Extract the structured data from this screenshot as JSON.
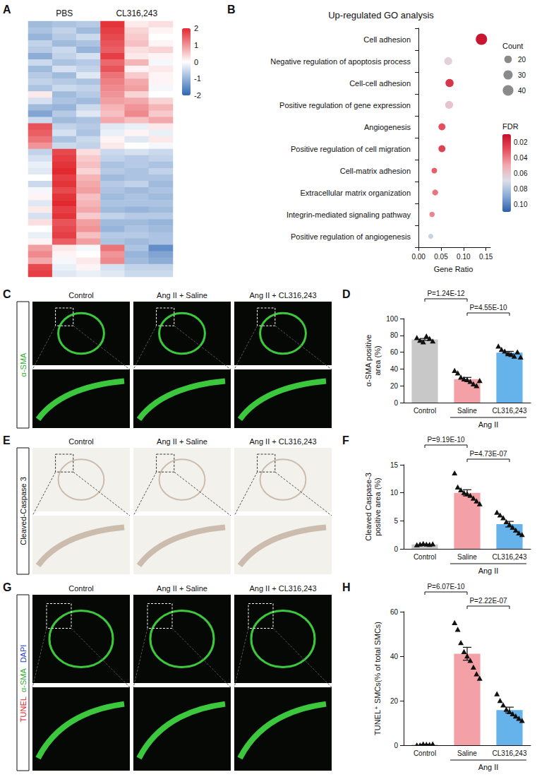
{
  "chart_data": [
    {
      "panel": "A",
      "type": "heatmap",
      "categories": [
        null,
        "PBS",
        null,
        null,
        "CL316,243",
        null
      ],
      "values": [
        [
          -0.9,
          -0.8,
          -0.7,
          1.9,
          0.2,
          0.3
        ],
        [
          -0.8,
          -0.6,
          -0.9,
          1.8,
          0.4,
          0.1
        ],
        [
          -1.0,
          -0.7,
          -0.5,
          1.7,
          0.5,
          0.0
        ],
        [
          -0.6,
          -0.9,
          -0.8,
          1.6,
          0.6,
          0.1
        ],
        [
          -0.7,
          -0.5,
          -1.0,
          1.5,
          0.3,
          0.4
        ],
        [
          -1.1,
          -0.6,
          -0.4,
          1.8,
          0.2,
          0.1
        ],
        [
          -0.5,
          -0.8,
          -0.7,
          1.4,
          0.7,
          -0.1
        ],
        [
          -0.9,
          -0.4,
          -0.6,
          1.6,
          0.1,
          0.2
        ],
        [
          -0.7,
          -0.9,
          -0.3,
          1.3,
          0.5,
          0.1
        ],
        [
          -0.6,
          -0.7,
          -0.8,
          1.2,
          0.8,
          0.1
        ],
        [
          -0.8,
          -0.5,
          -0.6,
          1.1,
          0.9,
          -0.1
        ],
        [
          0.2,
          -0.9,
          -0.7,
          1.0,
          0.4,
          0.0
        ],
        [
          -0.4,
          -0.8,
          -0.9,
          0.9,
          0.8,
          0.4
        ],
        [
          -0.9,
          -1.0,
          -0.5,
          0.7,
          1.0,
          0.7
        ],
        [
          -1.2,
          -0.7,
          -0.3,
          0.6,
          1.1,
          0.5
        ],
        [
          -0.5,
          -0.9,
          -0.8,
          0.8,
          0.6,
          0.8
        ],
        [
          1.6,
          -0.6,
          -0.7,
          -0.3,
          -0.2,
          0.2
        ],
        [
          1.5,
          -0.4,
          -0.8,
          -0.2,
          0.1,
          -0.2
        ],
        [
          1.3,
          -0.8,
          -0.5,
          0.1,
          -0.3,
          0.2
        ],
        [
          1.0,
          -0.5,
          -0.6,
          0.2,
          0.0,
          -0.1
        ],
        [
          -0.6,
          1.7,
          0.3,
          -0.5,
          -0.4,
          -0.5
        ],
        [
          -0.4,
          1.8,
          0.5,
          -0.6,
          -0.7,
          -0.6
        ],
        [
          -0.2,
          1.9,
          0.6,
          -0.8,
          -0.7,
          -0.8
        ],
        [
          -0.3,
          2.0,
          0.4,
          -0.7,
          -0.8,
          -0.6
        ],
        [
          0.0,
          1.8,
          0.7,
          -0.9,
          -0.8,
          -0.8
        ],
        [
          -0.5,
          1.9,
          0.8,
          -0.7,
          -0.6,
          -0.9
        ],
        [
          -0.1,
          1.7,
          0.9,
          -0.8,
          -0.9,
          -0.8
        ],
        [
          0.1,
          1.9,
          0.6,
          -0.9,
          -0.8,
          -0.9
        ],
        [
          -0.3,
          2.0,
          0.7,
          -0.8,
          -0.8,
          -0.8
        ],
        [
          0.2,
          1.8,
          0.8,
          -0.9,
          -1.0,
          -0.9
        ],
        [
          -0.4,
          1.9,
          0.5,
          -0.6,
          -0.7,
          -0.7
        ],
        [
          0.3,
          1.6,
          0.9,
          -0.9,
          -0.9,
          -1.0
        ],
        [
          0.0,
          1.7,
          1.0,
          -1.0,
          -0.8,
          -0.9
        ],
        [
          -0.2,
          1.8,
          0.6,
          -0.7,
          -0.7,
          -0.8
        ],
        [
          0.1,
          1.5,
          0.9,
          -0.8,
          -0.9,
          -0.8
        ],
        [
          0.9,
          0.2,
          -0.1,
          1.3,
          -0.8,
          -1.5
        ],
        [
          1.1,
          0.1,
          0.0,
          1.0,
          -1.0,
          -1.2
        ],
        [
          0.8,
          -0.1,
          0.2,
          1.1,
          -0.9,
          -1.1
        ],
        [
          1.7,
          -0.2,
          0.1,
          -0.4,
          -0.6,
          -0.6
        ],
        [
          1.8,
          -0.3,
          -0.2,
          -0.3,
          -0.5,
          -0.5
        ]
      ],
      "colorbar": {
        "range": [
          -2,
          2
        ],
        "ticks": [
          -2,
          -1,
          0,
          1,
          2
        ]
      },
      "tick_labels": "x"
    },
    {
      "panel": "B",
      "type": "scatter",
      "title": "Up-regulated GO analysis",
      "x_label": "Gene Ratio",
      "categories": [
        "Cell adhesion",
        "Negative regulation of apoptosis process",
        "Cell-cell adhesion",
        "Positive regulation of gene expression",
        "Angiogenesis",
        "Positive regulation of cell migration",
        "Cell-matrix adhesion",
        "Extracellular matrix organization",
        "Integrin-mediated signaling pathway",
        "Positive regulation of angiogenesis"
      ],
      "values": [
        0.14,
        0.066,
        0.069,
        0.068,
        0.052,
        0.052,
        0.035,
        0.037,
        0.03,
        0.027
      ],
      "counts": [
        45,
        22,
        23,
        22,
        17,
        17,
        11,
        12,
        10,
        9
      ],
      "fdr": [
        0.012,
        0.065,
        0.022,
        0.06,
        0.03,
        0.026,
        0.033,
        0.038,
        0.042,
        0.075
      ],
      "xlim": [
        -0.005,
        0.16
      ],
      "xticks": [
        {
          "value": 0,
          "label": "0.00"
        },
        {
          "value": 0.05,
          "label": "0.05"
        },
        {
          "value": 0.1,
          "label": "0.10"
        },
        {
          "value": 0.15,
          "label": "0.15"
        }
      ],
      "count_legend": {
        "title": "Count",
        "values": [
          20,
          30,
          40
        ]
      },
      "fdr_colorbar": {
        "title": "FDR",
        "range": [
          0.01,
          0.11
        ],
        "ticks": [
          0.02,
          0.04,
          0.06,
          0.08,
          {
            "value": 0.1,
            "label": "0.10"
          }
        ]
      },
      "grid": false
    },
    {
      "panel": "D",
      "type": "bar",
      "y_label": "α-SMA positive area (%)",
      "categories": [
        "Control",
        "Saline",
        "CL316,243"
      ],
      "values": [
        75.2,
        27.9,
        59.4
      ],
      "errors": [
        1.1,
        2.1,
        1.6
      ],
      "points": [
        [
          77,
          74,
          72,
          79,
          76,
          73
        ],
        [
          38,
          35,
          30,
          28,
          27,
          25,
          22,
          20,
          26
        ],
        [
          67,
          63,
          61,
          58,
          57,
          55,
          60,
          54
        ]
      ],
      "colors": [
        "#c8c8c8",
        "#f3a1a6",
        "#66b2ea"
      ],
      "marker": "triangle",
      "ylim": [
        0,
        100
      ],
      "yticks": [
        0,
        20,
        40,
        60,
        80,
        100
      ],
      "group": {
        "label": "Ang II",
        "categories": [
          "Saline",
          "CL316,243"
        ]
      },
      "comparisons": [
        {
          "categories": [
            "Control",
            "Saline"
          ],
          "label": "P=1.24E-12"
        },
        {
          "categories": [
            "Saline",
            "CL316,243"
          ],
          "label": "P=4.55E-10"
        }
      ],
      "grid": false
    },
    {
      "panel": "F",
      "type": "bar",
      "y_label": "Cleaved Caspase-3 positive area (%)",
      "categories": [
        "Control",
        "Saline",
        "CL316,243"
      ],
      "values": [
        0.8,
        10.0,
        4.4
      ],
      "errors": [
        0.03,
        0.55,
        0.5
      ],
      "points": [
        [
          0.7,
          0.8,
          0.9,
          0.8,
          0.75,
          0.85
        ],
        [
          13.5,
          11,
          10.5,
          10,
          9.8,
          9.5,
          9,
          8.5,
          8
        ],
        [
          6.5,
          6,
          5.5,
          4.8,
          4.3,
          3.8,
          3.3,
          2.8,
          2.5
        ]
      ],
      "colors": [
        "#c8c8c8",
        "#f3a1a6",
        "#66b2ea"
      ],
      "marker": "triangle",
      "ylim": [
        0,
        15
      ],
      "yticks": [
        0,
        5,
        10,
        15
      ],
      "group": {
        "label": "Ang II",
        "categories": [
          "Saline",
          "CL316,243"
        ]
      },
      "comparisons": [
        {
          "categories": [
            "Control",
            "Saline"
          ],
          "label": "P=9.19E-10"
        },
        {
          "categories": [
            "Saline",
            "CL316,243"
          ],
          "label": "P=4.73E-07"
        }
      ],
      "grid": false
    },
    {
      "panel": "H",
      "type": "bar",
      "y_label": "TUNEL⁺ SMCs(% of total SMCs)",
      "categories": [
        "Control",
        "Saline",
        "CL316,243"
      ],
      "values": [
        0.3,
        41.1,
        15.8
      ],
      "errors": [
        0.1,
        2.9,
        1.3
      ],
      "points": [
        [
          0,
          0,
          0.5,
          0.3,
          0.2,
          0.5
        ],
        [
          55,
          52,
          46,
          42,
          40,
          38,
          35,
          32,
          30
        ],
        [
          23,
          20,
          18,
          16,
          15,
          14,
          13,
          12,
          11
        ]
      ],
      "colors": [
        "#c8c8c8",
        "#f3a1a6",
        "#66b2ea"
      ],
      "marker": "triangle",
      "ylim": [
        0,
        60
      ],
      "yticks": [
        0,
        20,
        40,
        60
      ],
      "group": {
        "label": "Ang II",
        "categories": [
          "Saline",
          "CL316,243"
        ]
      },
      "comparisons": [
        {
          "categories": [
            "Control",
            "Saline"
          ],
          "label": "P=6.07E-10"
        },
        {
          "categories": [
            "Saline",
            "CL316,243"
          ],
          "label": "P=2.22E-07"
        }
      ],
      "grid": false
    }
  ],
  "image_panels": [
    {
      "panel": "C",
      "type": "fluorescence",
      "stain": [
        {
          "text": "α-SMA",
          "color": "#2fae2f"
        }
      ],
      "columns": [
        "Control",
        "Ang II + Saline",
        "Ang II + CL316,243"
      ]
    },
    {
      "panel": "E",
      "type": "brightfield",
      "stain": [
        {
          "text": "Cleaved-Caspase 3",
          "color": "#111111"
        }
      ],
      "columns": [
        "Control",
        "Ang II + Saline",
        "Ang II + CL316,243"
      ]
    },
    {
      "panel": "G",
      "type": "fluorescence",
      "stain": [
        {
          "text": "DAPI",
          "color": "#2846d8"
        },
        {
          "text": "α-SMA",
          "color": "#2fae2f"
        },
        {
          "text": "TUNEL",
          "color": "#e0252b"
        }
      ],
      "columns": [
        "Control",
        "Ang II + Saline",
        "Ang II + CL316,243"
      ]
    }
  ]
}
